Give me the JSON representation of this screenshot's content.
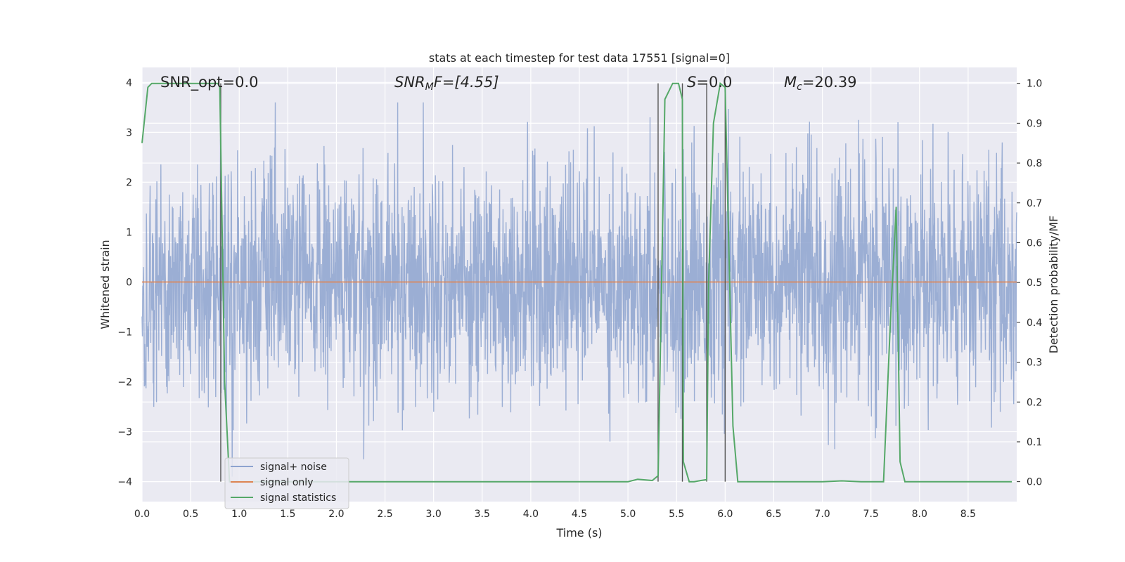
{
  "chart_data": {
    "type": "line",
    "title": "stats at each timestep for test data 17551 [signal=0]",
    "xlabel": "Time (s)",
    "ylabel": "Whitened strain",
    "ylabel_right": "Detection probability/MF",
    "xlim": [
      0.0,
      9.0
    ],
    "ylim": [
      -4.4,
      4.3
    ],
    "ylim_right": [
      -0.05,
      1.04
    ],
    "x_ticks": [
      "0.0",
      "0.5",
      "1.0",
      "1.5",
      "2.0",
      "2.5",
      "3.0",
      "3.5",
      "4.0",
      "4.5",
      "5.0",
      "5.5",
      "6.0",
      "6.5",
      "7.0",
      "7.5",
      "8.0",
      "8.5"
    ],
    "y_ticks": [
      "4",
      "3",
      "2",
      "1",
      "0",
      "−1",
      "−2",
      "−3",
      "−4"
    ],
    "y_ticks_right": [
      "1.0",
      "0.9",
      "0.8",
      "0.7",
      "0.6",
      "0.5",
      "0.4",
      "0.3",
      "0.2",
      "0.1",
      "0.0"
    ],
    "grid": true,
    "legend_position": "lower-left",
    "annotations": {
      "snr_opt": "SNR_opt=0.0",
      "snr_mf_main": "SNR",
      "snr_mf_sub": "M",
      "snr_mf_rest": "F=[4.55]",
      "s_main": "S",
      "s_rest": "=0.0",
      "mc_main": "M",
      "mc_sub": "c",
      "mc_rest": "=20.39"
    },
    "vertical_markers": [
      0.81,
      5.31,
      5.56,
      5.81,
      6.0
    ],
    "series": [
      {
        "name": "signal+ noise",
        "color": "#8da3cf",
        "noise_peak_max": 3.6,
        "noise_peak_min": -3.9
      },
      {
        "name": "signal only",
        "color": "#dd8452",
        "values_constant": 0.0
      },
      {
        "name": "signal statistics",
        "color": "#55a868",
        "axis": "right",
        "x": [
          0.0,
          0.06,
          0.1,
          0.2,
          0.4,
          0.6,
          0.78,
          0.8,
          0.85,
          0.9,
          1.0,
          2.0,
          3.0,
          4.0,
          5.0,
          5.1,
          5.25,
          5.31,
          5.38,
          5.46,
          5.52,
          5.56,
          5.57,
          5.63,
          5.68,
          5.75,
          5.81,
          5.83,
          5.88,
          5.95,
          6.0,
          6.08,
          6.13,
          6.5,
          7.0,
          7.2,
          7.4,
          7.63,
          7.7,
          7.76,
          7.8,
          7.85,
          8.5,
          8.95
        ],
        "values": [
          0.85,
          0.99,
          1.0,
          1.0,
          1.0,
          1.0,
          1.0,
          0.99,
          0.25,
          0.0,
          0.0,
          0.0,
          0.0,
          0.0,
          0.0,
          0.006,
          0.003,
          0.015,
          0.96,
          1.0,
          1.0,
          0.96,
          0.05,
          0.0,
          0.0,
          0.003,
          0.005,
          0.5,
          0.9,
          1.0,
          0.99,
          0.14,
          0.0,
          0.0,
          0.0,
          0.002,
          0.0,
          0.0,
          0.4,
          0.69,
          0.05,
          0.0,
          0.0,
          0.0
        ]
      }
    ]
  }
}
